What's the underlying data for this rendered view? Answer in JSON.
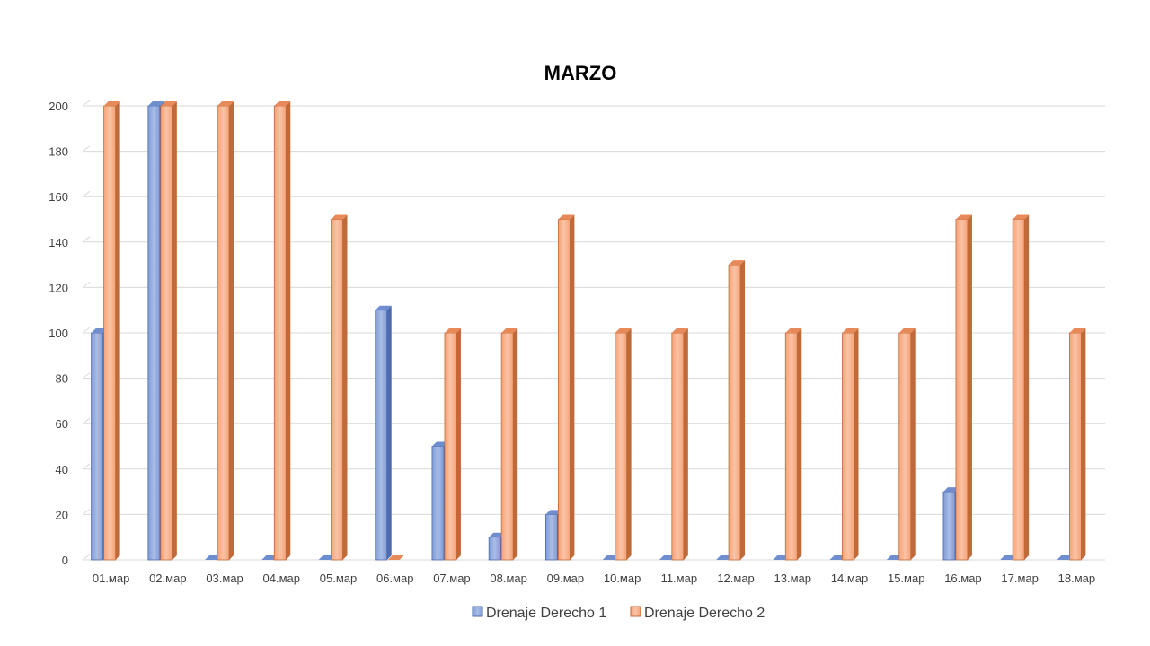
{
  "chart_data": {
    "type": "bar",
    "title": "MARZO",
    "xlabel": "",
    "ylabel": "",
    "ylim": [
      0,
      200
    ],
    "yticks": [
      0,
      20,
      40,
      60,
      80,
      100,
      120,
      140,
      160,
      180,
      200
    ],
    "grid": true,
    "legend_position": "bottom",
    "categories": [
      "01.мар",
      "02.мар",
      "03.мар",
      "04.мар",
      "05.мар",
      "06.мар",
      "07.мар",
      "08.мар",
      "09.мар",
      "10.мар",
      "11.мар",
      "12.мар",
      "13.мар",
      "14.мар",
      "15.мар",
      "16.мар",
      "17.мар",
      "18.мар"
    ],
    "series": [
      {
        "name": "Drenaje Derecho 1",
        "color": "#8FA8DC",
        "values": [
          100,
          200,
          0,
          0,
          0,
          110,
          50,
          10,
          20,
          0,
          0,
          0,
          0,
          0,
          0,
          30,
          0,
          0
        ]
      },
      {
        "name": "Drenaje Derecho 2",
        "color": "#F7AC85",
        "values": [
          200,
          200,
          200,
          200,
          150,
          0,
          100,
          100,
          150,
          100,
          100,
          130,
          100,
          100,
          100,
          150,
          150,
          100
        ]
      }
    ]
  }
}
